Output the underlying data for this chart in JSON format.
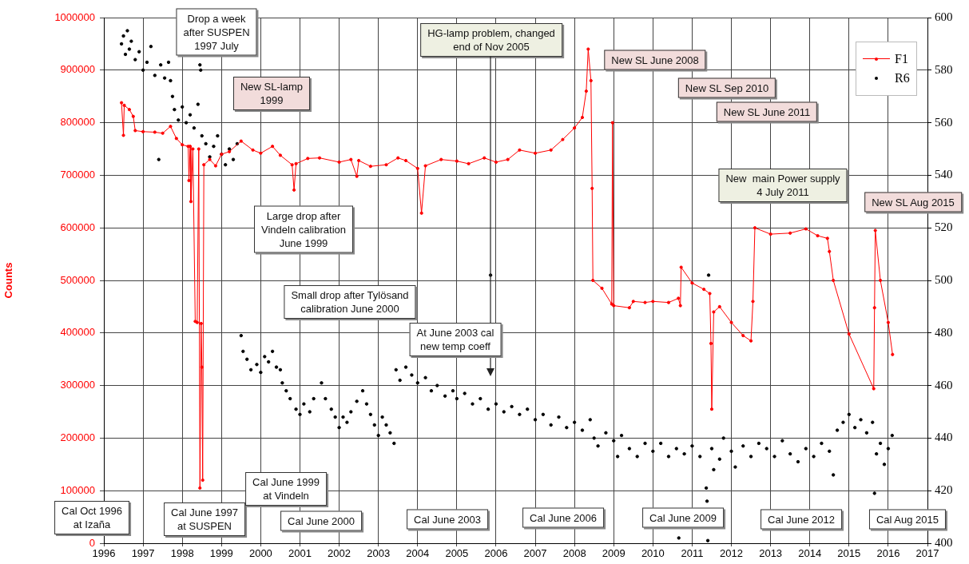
{
  "chart_data": {
    "type": "line",
    "ylabel": "Counts",
    "xlim": [
      1996,
      2017
    ],
    "xticks": [
      1996,
      1997,
      1998,
      1999,
      2000,
      2001,
      2002,
      2003,
      2004,
      2005,
      2006,
      2007,
      2008,
      2009,
      2010,
      2011,
      2012,
      2013,
      2014,
      2015,
      2016,
      2017
    ],
    "ylim": [
      0,
      1000000
    ],
    "yticks": [
      0,
      100000,
      200000,
      300000,
      400000,
      500000,
      600000,
      700000,
      800000,
      900000,
      1000000
    ],
    "y2lim": [
      400,
      600
    ],
    "y2ticks": [
      400,
      420,
      440,
      460,
      480,
      500,
      520,
      540,
      560,
      580,
      600
    ],
    "grid": true,
    "legend": "top right",
    "marker": "circle",
    "line_style": "solid",
    "series": [
      {
        "name": "F1",
        "color": "#ff0000",
        "x": [
          1996.45,
          1996.5,
          1996.52,
          1996.65,
          1996.75,
          1996.8,
          1997.0,
          1997.3,
          1997.5,
          1997.7,
          1997.85,
          1998.0,
          1998.15,
          1998.17,
          1998.2,
          1998.22,
          1998.27,
          1998.33,
          1998.38,
          1998.42,
          1998.45,
          1998.48,
          1998.5,
          1998.52,
          1998.55,
          1998.7,
          1998.85,
          1999.0,
          1999.2,
          1999.5,
          1999.8,
          2000.0,
          2000.3,
          2000.5,
          2000.8,
          2000.85,
          2000.9,
          2001.2,
          2001.5,
          2002.0,
          2002.3,
          2002.45,
          2002.5,
          2002.8,
          2003.2,
          2003.5,
          2003.7,
          2004.0,
          2004.1,
          2004.2,
          2004.6,
          2005.0,
          2005.3,
          2005.7,
          2006.0,
          2006.3,
          2006.6,
          2007.0,
          2007.4,
          2007.7,
          2008.0,
          2008.2,
          2008.3,
          2008.35,
          2008.42,
          2008.45,
          2008.47,
          2008.7,
          2008.95,
          2008.97,
          2009.0,
          2009.4,
          2009.5,
          2009.8,
          2010.0,
          2010.4,
          2010.65,
          2010.7,
          2010.72,
          2011.0,
          2011.3,
          2011.45,
          2011.48,
          2011.5,
          2011.55,
          2011.7,
          2012.0,
          2012.3,
          2012.5,
          2012.55,
          2012.6,
          2013.0,
          2013.5,
          2013.9,
          2014.2,
          2014.45,
          2014.5,
          2014.6,
          2015.0,
          2015.63,
          2015.65,
          2015.67,
          2015.8,
          2016.0,
          2016.11
        ],
        "values": [
          838000,
          776000,
          833000,
          825000,
          812000,
          785000,
          783000,
          782000,
          780000,
          793000,
          770000,
          758000,
          755000,
          690000,
          755000,
          650000,
          750000,
          422000,
          420000,
          750000,
          105000,
          418000,
          335000,
          120000,
          720000,
          730000,
          718000,
          740000,
          745000,
          765000,
          748000,
          742000,
          755000,
          738000,
          720000,
          672000,
          722000,
          732000,
          733000,
          725000,
          730000,
          698000,
          728000,
          717000,
          720000,
          733000,
          728000,
          713000,
          628000,
          718000,
          730000,
          727000,
          722000,
          733000,
          725000,
          730000,
          748000,
          742000,
          748000,
          768000,
          790000,
          810000,
          860000,
          940000,
          880000,
          675000,
          500000,
          485000,
          455000,
          800000,
          452000,
          448000,
          460000,
          458000,
          460000,
          458000,
          466000,
          452000,
          525000,
          495000,
          483000,
          475000,
          380000,
          255000,
          440000,
          450000,
          420000,
          395000,
          385000,
          460000,
          600000,
          588000,
          590000,
          598000,
          585000,
          580000,
          555000,
          500000,
          398000,
          294000,
          448000,
          595000,
          500000,
          420000,
          359000
        ]
      },
      {
        "name": "R6",
        "type": "scatter",
        "axis": "y2",
        "color": "#000000",
        "x": [
          1996.45,
          1996.5,
          1996.55,
          1996.6,
          1996.65,
          1996.7,
          1996.8,
          1996.9,
          1997.0,
          1997.1,
          1997.2,
          1997.3,
          1997.4,
          1997.45,
          1997.55,
          1997.65,
          1997.7,
          1997.75,
          1997.8,
          1997.9,
          1998.0,
          1998.1,
          1998.2,
          1998.3,
          1998.4,
          1998.45,
          1998.47,
          1998.5,
          1998.6,
          1998.7,
          1998.8,
          1998.9,
          1999.0,
          1999.1,
          1999.2,
          1999.3,
          1999.4,
          1999.5,
          1999.55,
          1999.65,
          1999.75,
          1999.9,
          2000.0,
          2000.1,
          2000.2,
          2000.3,
          2000.4,
          2000.5,
          2000.55,
          2000.65,
          2000.75,
          2000.9,
          2001.0,
          2001.1,
          2001.25,
          2001.35,
          2001.55,
          2001.65,
          2001.8,
          2001.9,
          2002.0,
          2002.1,
          2002.2,
          2002.3,
          2002.45,
          2002.6,
          2002.7,
          2002.8,
          2002.9,
          2003.0,
          2003.1,
          2003.2,
          2003.3,
          2003.4,
          2003.45,
          2003.55,
          2003.7,
          2003.85,
          2004.0,
          2004.2,
          2004.35,
          2004.5,
          2004.7,
          2004.9,
          2005.0,
          2005.2,
          2005.4,
          2005.6,
          2005.8,
          2005.86,
          2006.0,
          2006.2,
          2006.4,
          2006.6,
          2006.8,
          2007.0,
          2007.2,
          2007.4,
          2007.6,
          2007.8,
          2008.0,
          2008.2,
          2008.4,
          2008.5,
          2008.6,
          2008.8,
          2009.0,
          2009.1,
          2009.2,
          2009.4,
          2009.6,
          2009.8,
          2010.0,
          2010.2,
          2010.4,
          2010.6,
          2010.66,
          2010.8,
          2011.0,
          2011.2,
          2011.36,
          2011.38,
          2011.4,
          2011.42,
          2011.5,
          2011.55,
          2011.7,
          2011.8,
          2012.0,
          2012.1,
          2012.3,
          2012.5,
          2012.7,
          2012.9,
          2013.1,
          2013.3,
          2013.5,
          2013.7,
          2013.9,
          2014.1,
          2014.3,
          2014.5,
          2014.6,
          2014.7,
          2014.85,
          2015.0,
          2015.15,
          2015.3,
          2015.45,
          2015.6,
          2015.65,
          2015.7,
          2015.8,
          2015.9,
          2016.0,
          2016.1
        ],
        "values": [
          590,
          593,
          586,
          595,
          588,
          591,
          584,
          587,
          580,
          583,
          589,
          578,
          546,
          582,
          577,
          583,
          576,
          570,
          565,
          561,
          566,
          560,
          563,
          558,
          567,
          582,
          580,
          555,
          552,
          547,
          551,
          555,
          548,
          544,
          550,
          546,
          552,
          479,
          473,
          470,
          466,
          468,
          465,
          471,
          469,
          473,
          467,
          466,
          461,
          458,
          455,
          451,
          449,
          453,
          450,
          455,
          461,
          455,
          451,
          448,
          444,
          448,
          446,
          450,
          454,
          458,
          453,
          449,
          445,
          441,
          448,
          445,
          442,
          438,
          466,
          462,
          467,
          464,
          461,
          463,
          458,
          460,
          456,
          458,
          455,
          457,
          453,
          455,
          451,
          502,
          453,
          450,
          452,
          449,
          451,
          447,
          449,
          445,
          448,
          444,
          446,
          443,
          447,
          440,
          437,
          442,
          439,
          433,
          441,
          436,
          433,
          438,
          435,
          438,
          433,
          436,
          402,
          434,
          437,
          433,
          421,
          416,
          401,
          502,
          436,
          428,
          432,
          440,
          435,
          429,
          437,
          433,
          438,
          436,
          433,
          439,
          434,
          431,
          436,
          433,
          438,
          435,
          426,
          443,
          446,
          449,
          444,
          447,
          442,
          446,
          419,
          434,
          438,
          430,
          436,
          441
        ]
      }
    ],
    "annotations": [
      "Drop a week\nafter SUSPEN\n1997 July",
      "New SL-lamp\n1999",
      "HG-lamp problem, changed\nend of Nov 2005",
      "New SL June 2008",
      "New SL Sep 2010",
      "New SL June 2011",
      "New  main Power supply\n4 July 2011",
      "New SL Aug 2015",
      "Large drop after\nVindeln calibration\nJune 1999",
      "Small drop after Tylösand\ncalibration June 2000",
      "At June 2003 cal\nnew temp coeff",
      "Cal Oct 1996\nat Izaña",
      "Cal June 1997\nat SUSPEN",
      "Cal June 1999\nat Vindeln",
      "Cal June 2000",
      "Cal June 2003",
      "Cal June 2006",
      "Cal June 2009",
      "Cal June 2012",
      "Cal Aug 2015"
    ]
  }
}
